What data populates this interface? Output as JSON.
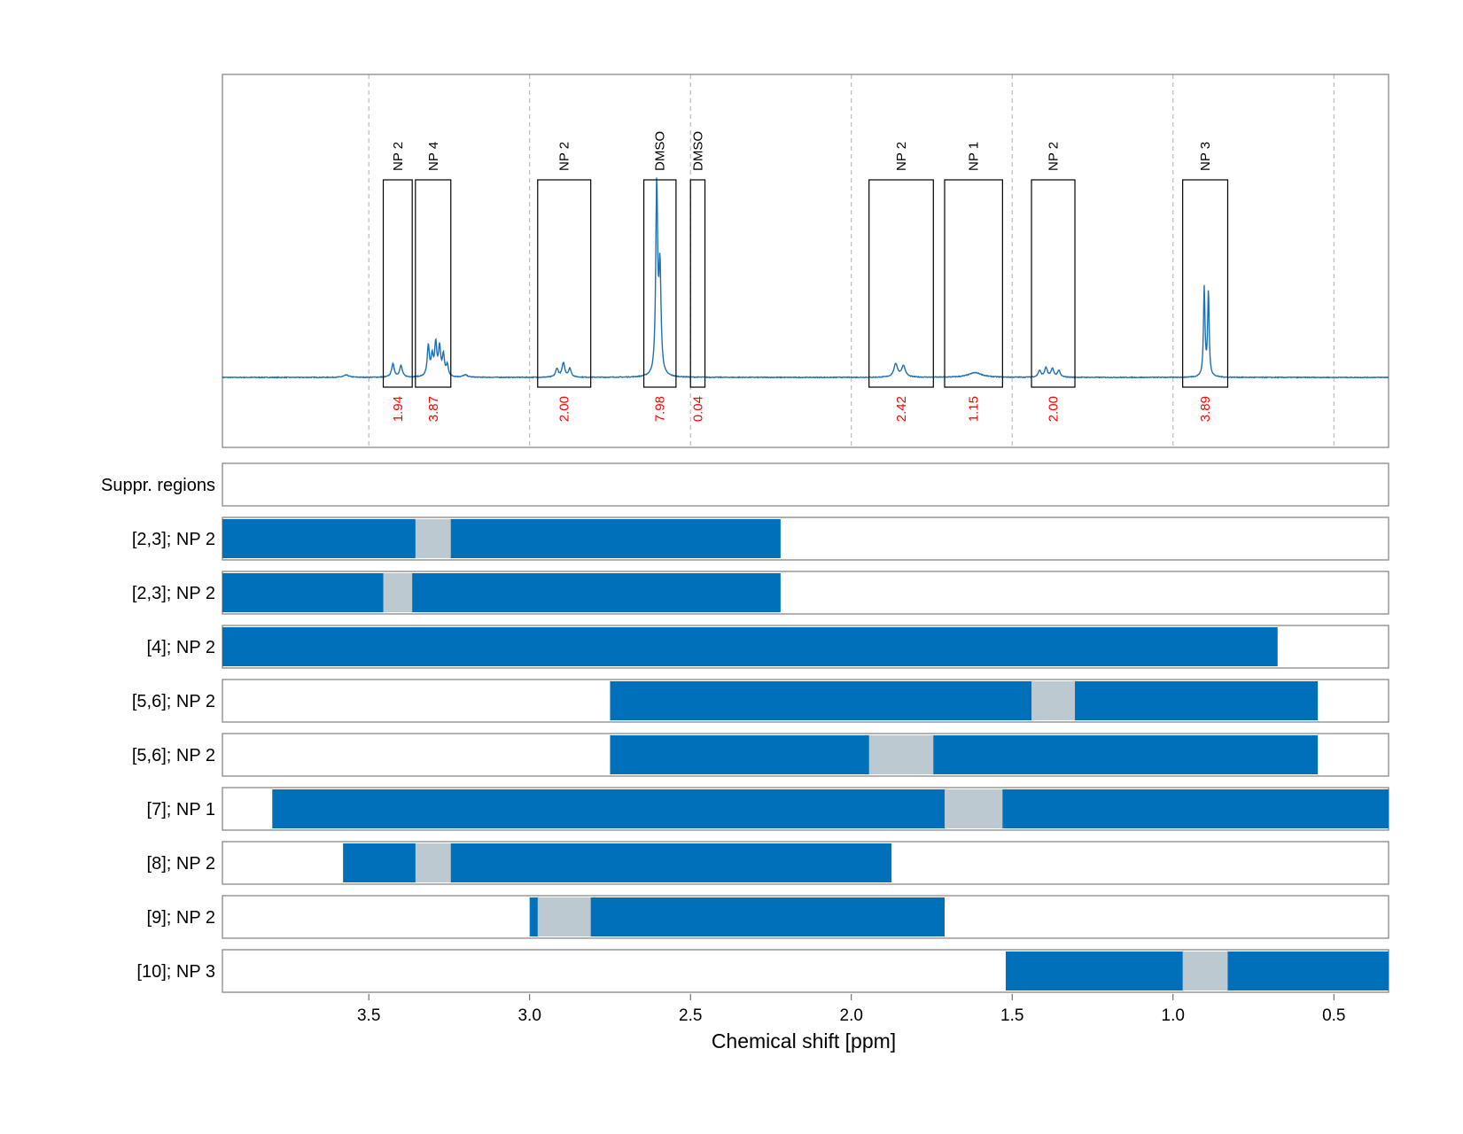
{
  "chart_data": {
    "type": "line",
    "xlabel": "Chemical shift [ppm]",
    "xlim": [
      3.955,
      0.33
    ],
    "x_reversed": true,
    "x_ticks": [
      "3.5",
      "3.0",
      "2.5",
      "2.0",
      "1.5",
      "1.0",
      "0.5"
    ],
    "x_tick_values": [
      3.5,
      3.0,
      2.5,
      2.0,
      1.5,
      1.0,
      0.5
    ],
    "grid": "vertical dashed at x ticks (spectrum panel)",
    "spectrum": {
      "color": "#1f6fb5",
      "baseline": 0,
      "ylim": [
        -0.35,
        1.45
      ],
      "peaks": [
        {
          "center": 3.57,
          "height": 0.012,
          "width": 0.01
        },
        {
          "center": 3.425,
          "height": 0.07,
          "width": 0.005
        },
        {
          "center": 3.4,
          "height": 0.06,
          "width": 0.005
        },
        {
          "center": 3.315,
          "height": 0.16,
          "width": 0.004
        },
        {
          "center": 3.303,
          "height": 0.1,
          "width": 0.004
        },
        {
          "center": 3.292,
          "height": 0.17,
          "width": 0.004
        },
        {
          "center": 3.28,
          "height": 0.15,
          "width": 0.004
        },
        {
          "center": 3.268,
          "height": 0.11,
          "width": 0.004
        },
        {
          "center": 3.256,
          "height": 0.06,
          "width": 0.004
        },
        {
          "center": 3.2,
          "height": 0.012,
          "width": 0.008
        },
        {
          "center": 2.915,
          "height": 0.045,
          "width": 0.005
        },
        {
          "center": 2.895,
          "height": 0.075,
          "width": 0.005
        },
        {
          "center": 2.875,
          "height": 0.045,
          "width": 0.005
        },
        {
          "center": 2.605,
          "height": 1.0,
          "width": 0.0035
        },
        {
          "center": 2.595,
          "height": 0.55,
          "width": 0.004
        },
        {
          "center": 1.862,
          "height": 0.07,
          "width": 0.007
        },
        {
          "center": 1.838,
          "height": 0.06,
          "width": 0.007
        },
        {
          "center": 1.615,
          "height": 0.025,
          "width": 0.025
        },
        {
          "center": 1.415,
          "height": 0.035,
          "width": 0.005
        },
        {
          "center": 1.395,
          "height": 0.05,
          "width": 0.005
        },
        {
          "center": 1.375,
          "height": 0.045,
          "width": 0.005
        },
        {
          "center": 1.355,
          "height": 0.035,
          "width": 0.005
        },
        {
          "center": 0.903,
          "height": 0.47,
          "width": 0.0028
        },
        {
          "center": 0.89,
          "height": 0.45,
          "width": 0.0028
        }
      ]
    },
    "regions": [
      {
        "label": "NP 2",
        "value": "1.94",
        "from": 3.455,
        "to": 3.365
      },
      {
        "label": "NP 4",
        "value": "3.87",
        "from": 3.355,
        "to": 3.245
      },
      {
        "label": "NP 2",
        "value": "2.00",
        "from": 2.975,
        "to": 2.81
      },
      {
        "label": "DMSO",
        "value": "7.98",
        "from": 2.645,
        "to": 2.545
      },
      {
        "label": "DMSO",
        "value": "0.04",
        "from": 2.5,
        "to": 2.455
      },
      {
        "label": "NP 2",
        "value": "2.42",
        "from": 1.945,
        "to": 1.745
      },
      {
        "label": "NP 1",
        "value": "1.15",
        "from": 1.71,
        "to": 1.53
      },
      {
        "label": "NP 2",
        "value": "2.00",
        "from": 1.44,
        "to": 1.305
      },
      {
        "label": "NP 3",
        "value": "3.89",
        "from": 0.97,
        "to": 0.83
      }
    ],
    "region_label_color": "#000000",
    "integral_color": "#ff0000",
    "bar_rows": [
      {
        "label": "Suppr. regions",
        "blue": [],
        "gray": []
      },
      {
        "label": "[2,3]; NP 2",
        "blue": [
          [
            3.955,
            2.22
          ]
        ],
        "gray": [
          [
            3.355,
            3.245
          ]
        ]
      },
      {
        "label": "[2,3]; NP 2",
        "blue": [
          [
            3.955,
            2.22
          ]
        ],
        "gray": [
          [
            3.455,
            3.365
          ]
        ]
      },
      {
        "label": "[4]; NP 2",
        "blue": [
          [
            3.955,
            0.675
          ]
        ],
        "gray": []
      },
      {
        "label": "[5,6]; NP 2",
        "blue": [
          [
            2.75,
            0.55
          ]
        ],
        "gray": [
          [
            1.44,
            1.305
          ]
        ]
      },
      {
        "label": "[5,6]; NP 2",
        "blue": [
          [
            2.75,
            0.55
          ]
        ],
        "gray": [
          [
            1.945,
            1.745
          ]
        ]
      },
      {
        "label": "[7]; NP 1",
        "blue": [
          [
            3.8,
            0.33
          ]
        ],
        "gray": [
          [
            1.71,
            1.53
          ]
        ]
      },
      {
        "label": "[8]; NP 2",
        "blue": [
          [
            3.58,
            1.875
          ]
        ],
        "gray": [
          [
            3.355,
            3.245
          ]
        ]
      },
      {
        "label": "[9]; NP 2",
        "blue": [
          [
            3.0,
            1.71
          ]
        ],
        "gray": [
          [
            2.975,
            2.81
          ]
        ]
      },
      {
        "label": "[10]; NP 3",
        "blue": [
          [
            1.52,
            0.33
          ]
        ],
        "gray": [
          [
            0.97,
            0.83
          ]
        ]
      }
    ],
    "colors": {
      "blue": "#0070bb",
      "gray": "#bcc9d1",
      "frame": "#888888",
      "grid": "#b0b0b0"
    }
  }
}
